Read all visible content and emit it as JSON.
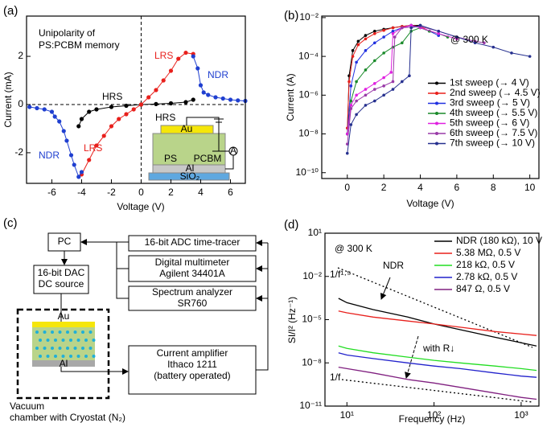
{
  "chart_data": [
    {
      "type": "line",
      "panel_label": "(a)",
      "xlabel": "Voltage (V)",
      "ylabel": "Current (mA)",
      "xlim": [
        -7.7,
        7.0
      ],
      "ylim": [
        -3.27,
        3.67
      ],
      "xticks": [
        -6,
        -4,
        -2,
        0,
        2,
        4,
        6
      ],
      "yticks": [
        -2,
        0,
        2
      ],
      "annotations": [
        {
          "text": "Unipolarity of",
          "color": "#000000"
        },
        {
          "text": "PS:PCBM memory",
          "color": "#000000"
        },
        {
          "text": "HRS",
          "color": "#000000"
        },
        {
          "text": "LRS",
          "color": "#e8201c"
        },
        {
          "text": "LRS",
          "color": "#e8201c"
        },
        {
          "text": "NDR",
          "color": "#1f3fd0"
        },
        {
          "text": "NDR",
          "color": "#1f3fd0"
        }
      ],
      "inset_labels": [
        "HRS",
        "Au",
        "PS",
        "PCBM",
        "Al",
        "SiO₂",
        "A"
      ],
      "series": [
        {
          "color": "#000000",
          "x": [
            -4.2,
            -4,
            -3.5,
            -3,
            -2,
            -1,
            0,
            1,
            2,
            3,
            3.5
          ],
          "values": [
            -0.9,
            -0.6,
            -0.3,
            -0.2,
            -0.1,
            -0.05,
            0,
            0.02,
            0.05,
            0.1,
            0.2
          ]
        },
        {
          "color": "#e8201c",
          "x": [
            -4,
            -3.5,
            -3,
            -2.5,
            -2,
            -1.5,
            -1,
            -0.5,
            0,
            0.5,
            1,
            1.5,
            2,
            2.5,
            3,
            3.5
          ],
          "values": [
            -2.9,
            -2.3,
            -1.7,
            -1.3,
            -0.9,
            -0.6,
            -0.4,
            -0.2,
            0,
            0.3,
            0.6,
            1.0,
            1.4,
            1.9,
            2.15,
            2.1
          ]
        },
        {
          "color": "#1f3fd0",
          "x": [
            3.5,
            3.8,
            4,
            4.2,
            4.5,
            5,
            5.5,
            6,
            6.5,
            7
          ],
          "values": [
            2.0,
            1.5,
            0.8,
            0.5,
            0.4,
            0.3,
            0.25,
            0.2,
            0.17,
            0.15
          ]
        },
        {
          "color": "#1f3fd0",
          "x": [
            -7.5,
            -7,
            -6.5,
            -6,
            -5.8,
            -5.5,
            -5.2,
            -5,
            -4.7,
            -4.5,
            -4.2,
            -4
          ],
          "values": [
            -0.1,
            -0.15,
            -0.2,
            -0.3,
            -0.5,
            -0.7,
            -1.1,
            -1.5,
            -2.1,
            -2.5,
            -3.0,
            -2.8
          ]
        }
      ]
    },
    {
      "type": "line",
      "panel_label": "(b)",
      "xlabel": "Voltage (V)",
      "ylabel": "Current (A)",
      "ylog": true,
      "xlim": [
        -1.4,
        10.5
      ],
      "ylim": [
        5e-11,
        0.012
      ],
      "xticks": [
        0,
        2,
        4,
        6,
        8,
        10
      ],
      "yticks": [
        {
          "value": 1e-10,
          "label": "10⁻¹⁰"
        },
        {
          "value": 1e-08,
          "label": "10⁻⁸"
        },
        {
          "value": 1e-06,
          "label": "10⁻⁶"
        },
        {
          "value": 0.0001,
          "label": "10⁻⁴"
        },
        {
          "value": 0.01,
          "label": "10⁻²"
        }
      ],
      "annotations": [
        {
          "text": "@ 300 K",
          "color": "#000000"
        }
      ],
      "legend": "center right",
      "series": [
        {
          "name": "1st  sweep (→  4  V)",
          "color": "#000000",
          "x": [
            0,
            0.1,
            0.3,
            0.6,
            1,
            1.5,
            2,
            2.5,
            3,
            3.5,
            4
          ],
          "values": [
            1e-08,
            1e-05,
            0.0002,
            0.0006,
            0.0012,
            0.002,
            0.0025,
            0.003,
            0.0035,
            0.004,
            0.004
          ]
        },
        {
          "name": "2nd sweep (→ 4.5 V)",
          "color": "#e8201c",
          "x": [
            0,
            0.1,
            0.3,
            0.6,
            1,
            1.5,
            2,
            2.5,
            3,
            3.5,
            4,
            4.5
          ],
          "values": [
            2e-08,
            5e-06,
            0.0001,
            0.0004,
            0.0008,
            0.0015,
            0.0022,
            0.003,
            0.0035,
            0.004,
            0.0035,
            0.002
          ]
        },
        {
          "name": "3rd  sweep (→  5  V)",
          "color": "#2030e0",
          "x": [
            0,
            0.2,
            0.5,
            1,
            1.5,
            2,
            2.5,
            3,
            3.5,
            4,
            4.5,
            5
          ],
          "values": [
            1e-08,
            3e-06,
            5e-05,
            0.0002,
            0.0005,
            0.001,
            0.002,
            0.003,
            0.004,
            0.003,
            0.002,
            0.0012
          ]
        },
        {
          "name": "4th  sweep (→ 5.5 V)",
          "color": "#1a8a2a",
          "x": [
            0,
            0.2,
            0.5,
            1,
            1.5,
            2,
            2.5,
            3,
            3.5,
            4,
            4.5,
            5,
            5.5
          ],
          "values": [
            1e-08,
            5e-07,
            5e-06,
            2e-05,
            6e-05,
            0.00015,
            0.0003,
            0.0005,
            0.002,
            0.003,
            0.002,
            0.0015,
            0.001
          ]
        },
        {
          "name": "5th  sweep (→  6  V)",
          "color": "#e020e0",
          "x": [
            0,
            0.2,
            0.5,
            1,
            1.5,
            2,
            2.4,
            2.5,
            3,
            3.5,
            4,
            5,
            6
          ],
          "values": [
            1e-08,
            3e-07,
            1e-06,
            2e-06,
            4e-06,
            8e-06,
            1.5e-05,
            0.0015,
            0.003,
            0.004,
            0.003,
            0.0015,
            0.0008
          ]
        },
        {
          "name": "6th  sweep (→ 7.5 V)",
          "color": "#9a3aa8",
          "x": [
            0,
            0.2,
            0.5,
            1,
            1.5,
            2,
            2.5,
            2.6,
            3,
            4,
            5,
            6,
            7,
            7.5
          ],
          "values": [
            3e-09,
            2e-07,
            5e-07,
            1e-06,
            2e-06,
            3e-06,
            5e-06,
            0.001,
            0.003,
            0.0035,
            0.002,
            0.001,
            0.0006,
            0.0005
          ]
        },
        {
          "name": "7th  sweep (→ 10  V)",
          "color": "#26308f",
          "x": [
            0,
            0.2,
            0.5,
            1,
            1.5,
            2,
            2.5,
            3,
            3.4,
            3.5,
            4,
            5,
            6,
            7,
            8,
            9,
            10
          ],
          "values": [
            1e-09,
            3e-08,
            1e-07,
            3e-07,
            5e-07,
            1e-06,
            2e-06,
            5e-06,
            1e-05,
            0.003,
            0.004,
            0.002,
            0.001,
            0.0005,
            0.0003,
            0.00015,
            0.0001
          ]
        }
      ]
    },
    {
      "type": "line",
      "panel_label": "(d)",
      "xlabel": "Frequency (Hz)",
      "ylabel": "SI/I² (Hz⁻¹)",
      "xlog": true,
      "ylog": true,
      "xlim": [
        5.6,
        1600
      ],
      "ylim": [
        1e-11,
        10
      ],
      "xticks": [
        {
          "value": 10,
          "label": "10¹"
        },
        {
          "value": 100,
          "label": "10²"
        },
        {
          "value": 1000,
          "label": "10³"
        }
      ],
      "yticks": [
        {
          "value": 1e-11,
          "label": "10⁻¹¹"
        },
        {
          "value": 1e-08,
          "label": "10⁻⁸"
        },
        {
          "value": 1e-05,
          "label": "10⁻⁵"
        },
        {
          "value": 0.01,
          "label": "10⁻²"
        },
        {
          "value": 10,
          "label": "10¹"
        }
      ],
      "annotations": [
        {
          "text": "@ 300 K",
          "color": "#000000"
        },
        {
          "text": "1/f¹·⁵",
          "color": "#000000"
        },
        {
          "text": "NDR",
          "color": "#000000"
        },
        {
          "text": "with R↓",
          "color": "#000000"
        },
        {
          "text": "1/f",
          "color": "#000000"
        }
      ],
      "legend": "upper right",
      "series": [
        {
          "name": "NDR (180 kΩ), 10 V",
          "color": "#000000",
          "x": [
            8,
            10,
            20,
            50,
            100,
            200,
            500,
            1000,
            1500
          ],
          "values": [
            0.0003,
            0.00015,
            5e-05,
            1.5e-05,
            5e-06,
            2e-06,
            6e-07,
            2.5e-07,
            1.5e-07
          ]
        },
        {
          "name": "5.38 MΩ, 0.5 V",
          "color": "#e8201c",
          "x": [
            8,
            10,
            20,
            50,
            100,
            200,
            500,
            1000,
            1500
          ],
          "values": [
            4e-05,
            3e-05,
            1.5e-05,
            8e-06,
            5e-06,
            3e-06,
            1.5e-06,
            1e-06,
            8e-07
          ]
        },
        {
          "name": "218 kΩ, 0.5 V",
          "color": "#22dd22",
          "x": [
            8,
            10,
            20,
            50,
            100,
            200,
            500,
            1000,
            1500
          ],
          "values": [
            1.5e-07,
            1e-07,
            5e-08,
            2.5e-08,
            1.5e-08,
            1e-08,
            6e-09,
            4e-09,
            3e-09
          ]
        },
        {
          "name": "2.78 kΩ, 0.5 V",
          "color": "#2222cc",
          "x": [
            8,
            10,
            20,
            50,
            100,
            200,
            500,
            1000,
            1500
          ],
          "values": [
            5e-08,
            3.5e-08,
            2e-08,
            1e-08,
            6e-09,
            4e-09,
            2e-09,
            1.2e-09,
            1e-09
          ]
        },
        {
          "name": "847 Ω, 0.5 V",
          "color": "#802080",
          "x": [
            8,
            10,
            20,
            50,
            100,
            200,
            500,
            1000,
            1500
          ],
          "values": [
            5e-09,
            4e-09,
            2e-09,
            7e-10,
            4e-10,
            2e-10,
            8e-11,
            4e-11,
            3e-11
          ]
        }
      ]
    }
  ],
  "diagram": {
    "panel_label": "(c)",
    "boxes": [
      [
        "PC"
      ],
      [
        "16-bit DAC",
        "DC source"
      ],
      [
        "16-bit ADC time-tracer"
      ],
      [
        "Digital multimeter",
        "Agilent 34401A"
      ],
      [
        "Spectrum analyzer",
        "SR760"
      ],
      [
        "Current amplifier",
        "Ithaco 1211",
        "(battery operated)"
      ]
    ],
    "device_labels": [
      "Au",
      "Al"
    ],
    "chamber_label": [
      "Vacuum",
      "chamber with Cryostat (N₂)"
    ]
  }
}
